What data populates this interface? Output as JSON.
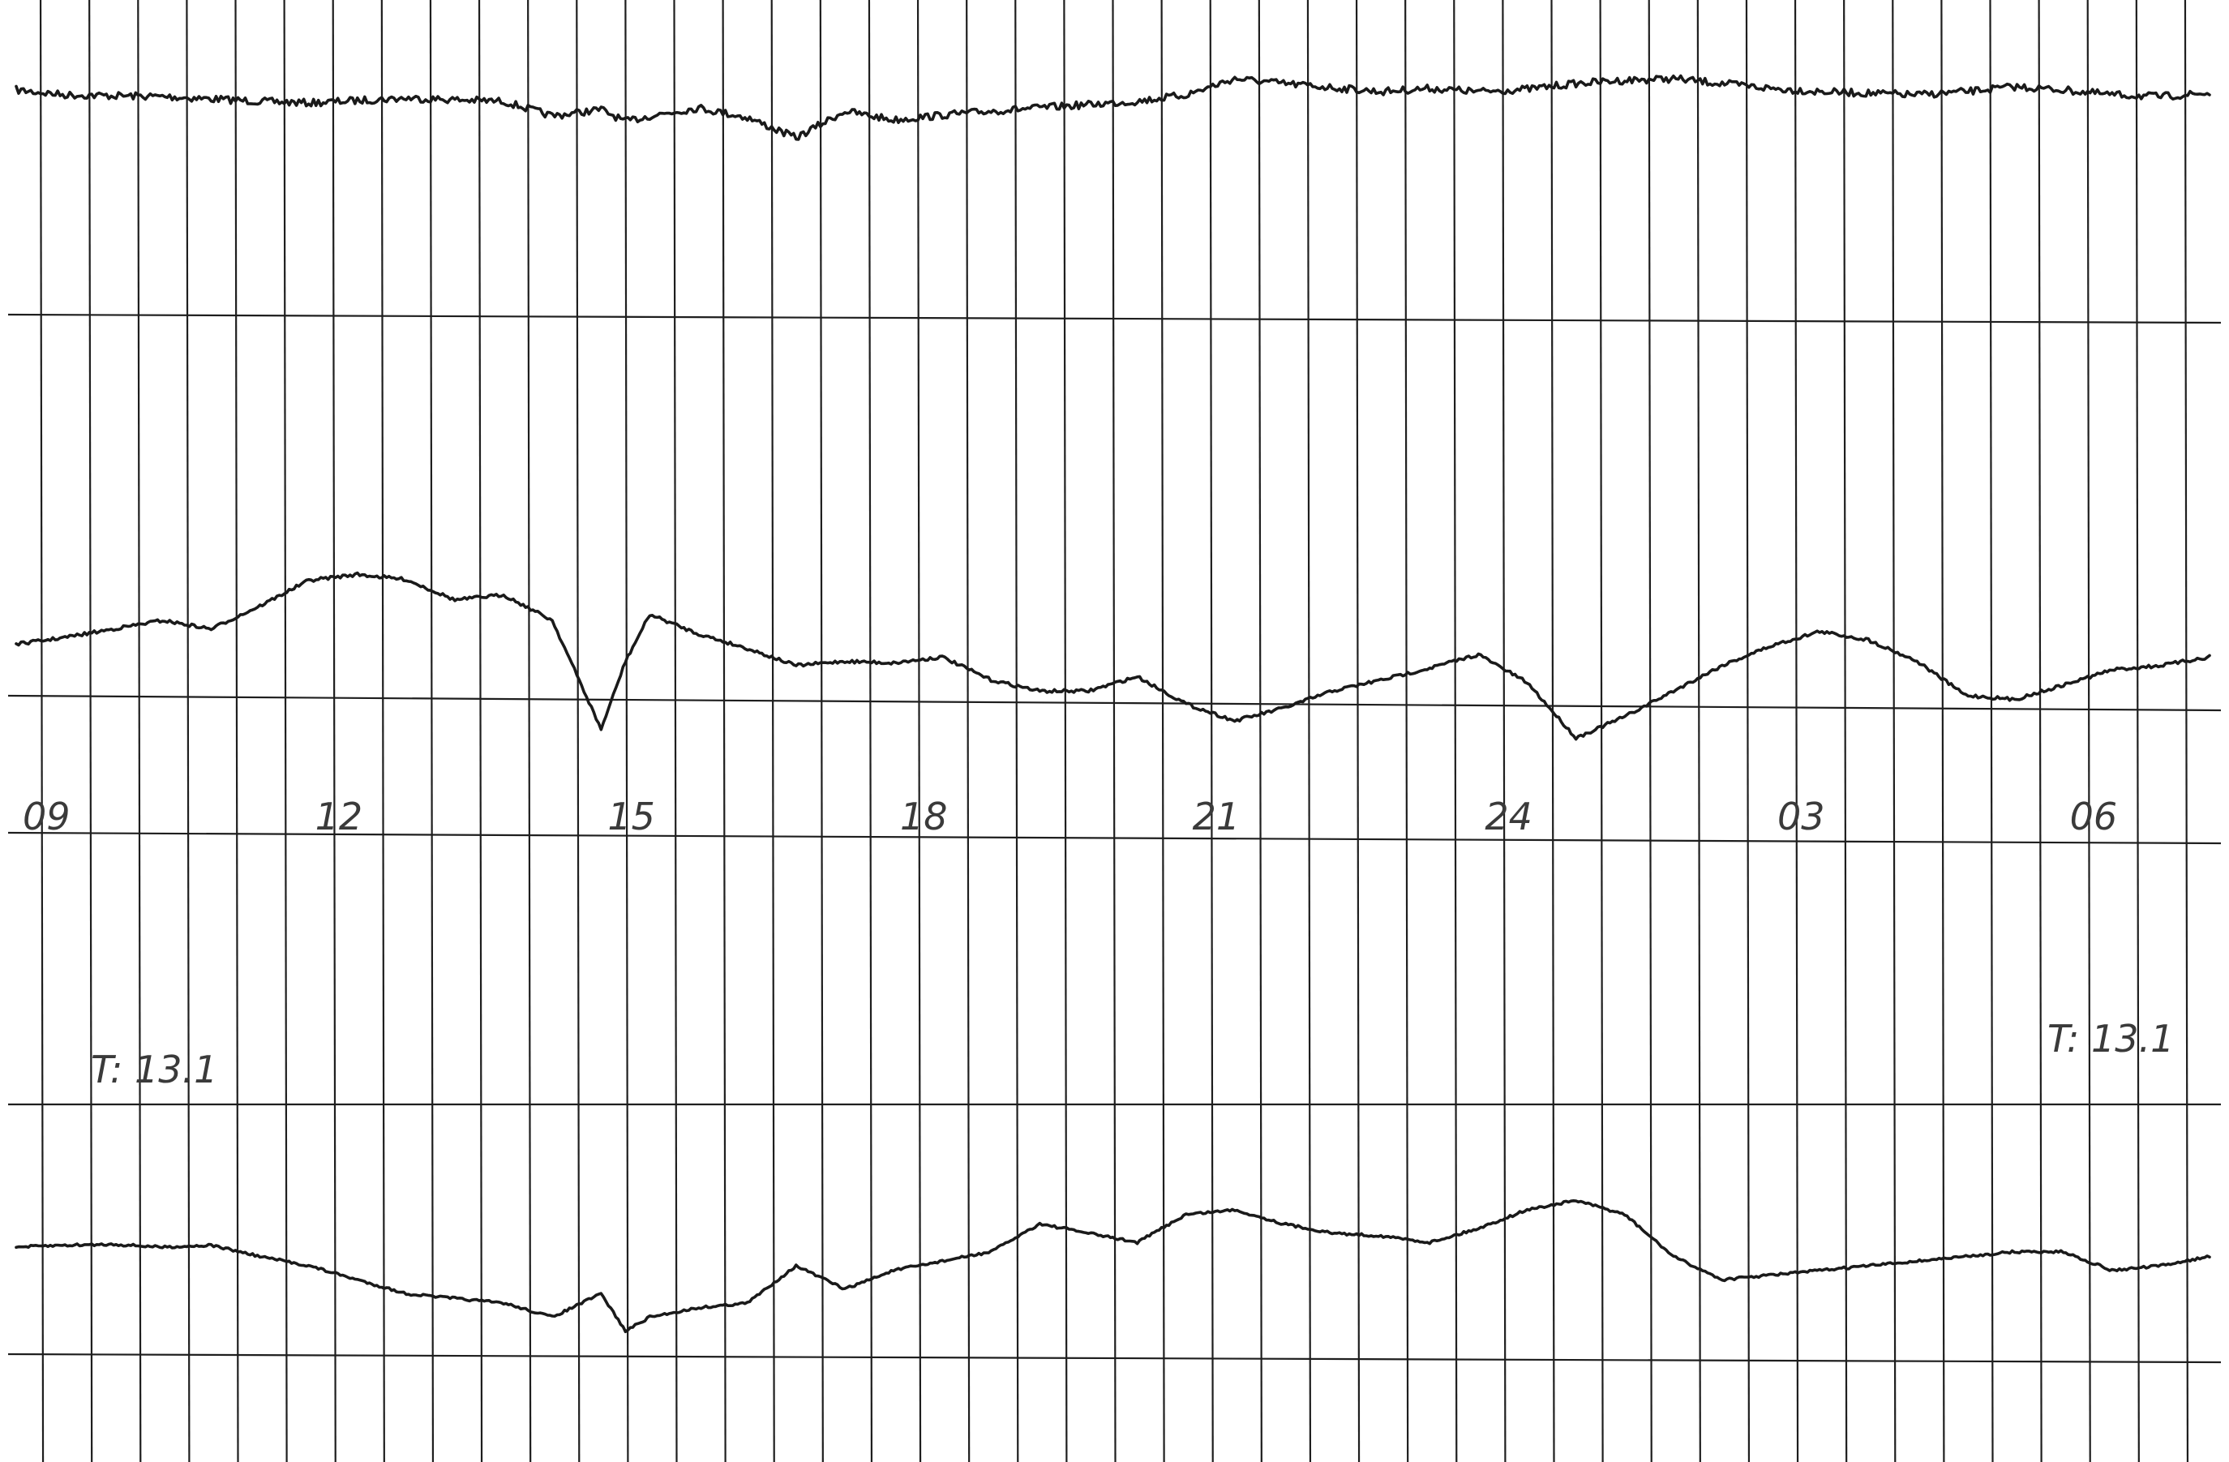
{
  "chart_data": {
    "type": "line",
    "title": "",
    "xlabel": "",
    "ylabel": "",
    "grid": true,
    "x_tick_labels": [
      "09",
      "12",
      "15",
      "18",
      "21",
      "24",
      "03",
      "06"
    ],
    "annotations": [
      "T: 13.1",
      "T: 13.1"
    ],
    "x": [
      9.0,
      9.5,
      10.0,
      10.5,
      11.0,
      11.5,
      12.0,
      12.5,
      13.0,
      13.5,
      14.0,
      14.5,
      15.0,
      15.25,
      15.5,
      16.0,
      16.5,
      17.0,
      17.5,
      18.0,
      18.5,
      19.0,
      19.5,
      20.0,
      20.5,
      21.0,
      21.5,
      22.0,
      22.5,
      23.0,
      23.5,
      24.0,
      24.5,
      25.0,
      25.5,
      26.0,
      26.5,
      27.0,
      27.5,
      28.0,
      28.5,
      29.0,
      29.5,
      30.0,
      30.5,
      31.0,
      31.5
    ],
    "series": [
      {
        "values": [
          0.94,
          0.88,
          0.87,
          0.86,
          0.83,
          0.8,
          0.78,
          0.81,
          0.84,
          0.82,
          0.8,
          0.62,
          0.7,
          0.55,
          0.62,
          0.72,
          0.6,
          0.35,
          0.68,
          0.57,
          0.63,
          0.68,
          0.72,
          0.76,
          0.8,
          0.88,
          1.08,
          1.02,
          0.97,
          0.92,
          0.96,
          0.92,
          0.95,
          1.02,
          1.06,
          1.08,
          1.02,
          0.96,
          0.92,
          0.9,
          0.88,
          0.92,
          0.98,
          0.94,
          0.88,
          0.86,
          0.9
        ]
      },
      {
        "values": [
          0.1,
          0.18,
          0.28,
          0.38,
          0.28,
          0.55,
          0.85,
          0.92,
          0.86,
          0.62,
          0.68,
          0.38,
          -0.9,
          -0.1,
          0.45,
          0.22,
          0.05,
          -0.15,
          -0.1,
          -0.12,
          -0.05,
          -0.32,
          -0.45,
          -0.45,
          -0.28,
          -0.6,
          -0.8,
          -0.65,
          -0.45,
          -0.32,
          -0.18,
          -0.02,
          -0.35,
          -1.0,
          -0.75,
          -0.45,
          -0.15,
          0.08,
          0.25,
          0.15,
          -0.1,
          -0.5,
          -0.55,
          -0.38,
          -0.2,
          -0.15,
          -0.05
        ]
      },
      {
        "values": [
          0.0,
          0.02,
          0.03,
          0.0,
          0.02,
          -0.1,
          -0.2,
          -0.35,
          -0.5,
          -0.55,
          -0.6,
          -0.75,
          -0.5,
          -0.9,
          -0.75,
          -0.65,
          -0.6,
          -0.2,
          -0.45,
          -0.25,
          -0.15,
          -0.05,
          0.25,
          0.15,
          0.05,
          0.35,
          0.4,
          0.25,
          0.15,
          0.12,
          0.05,
          0.2,
          0.4,
          0.5,
          0.35,
          -0.1,
          -0.35,
          -0.3,
          -0.25,
          -0.2,
          -0.15,
          -0.1,
          -0.05,
          -0.05,
          -0.25,
          -0.2,
          -0.1
        ]
      }
    ]
  }
}
